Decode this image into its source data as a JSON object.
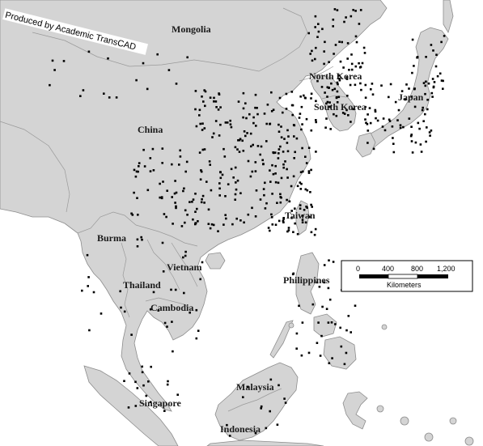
{
  "credit": "Produced by Academic TransCAD",
  "labels": {
    "mongolia": "Mongolia",
    "china": "China",
    "north_korea": "North Korea",
    "south_korea": "South Korea",
    "japan": "Japan",
    "taiwan": "Taiwan",
    "burma": "Burma",
    "vietnam": "Vietnam",
    "thailand": "Thailand",
    "cambodia": "Cambodia",
    "philippines": "Philippines",
    "malaysia": "Malaysia",
    "singapore": "Singapore",
    "indonesia": "Indonesia"
  },
  "scale_bar": {
    "ticks": [
      "0",
      "400",
      "800",
      "1,200"
    ],
    "unit": "Kilometers"
  },
  "colors": {
    "land": "#d4d4d4",
    "water": "#ffffff",
    "city_dots": "#000000"
  }
}
